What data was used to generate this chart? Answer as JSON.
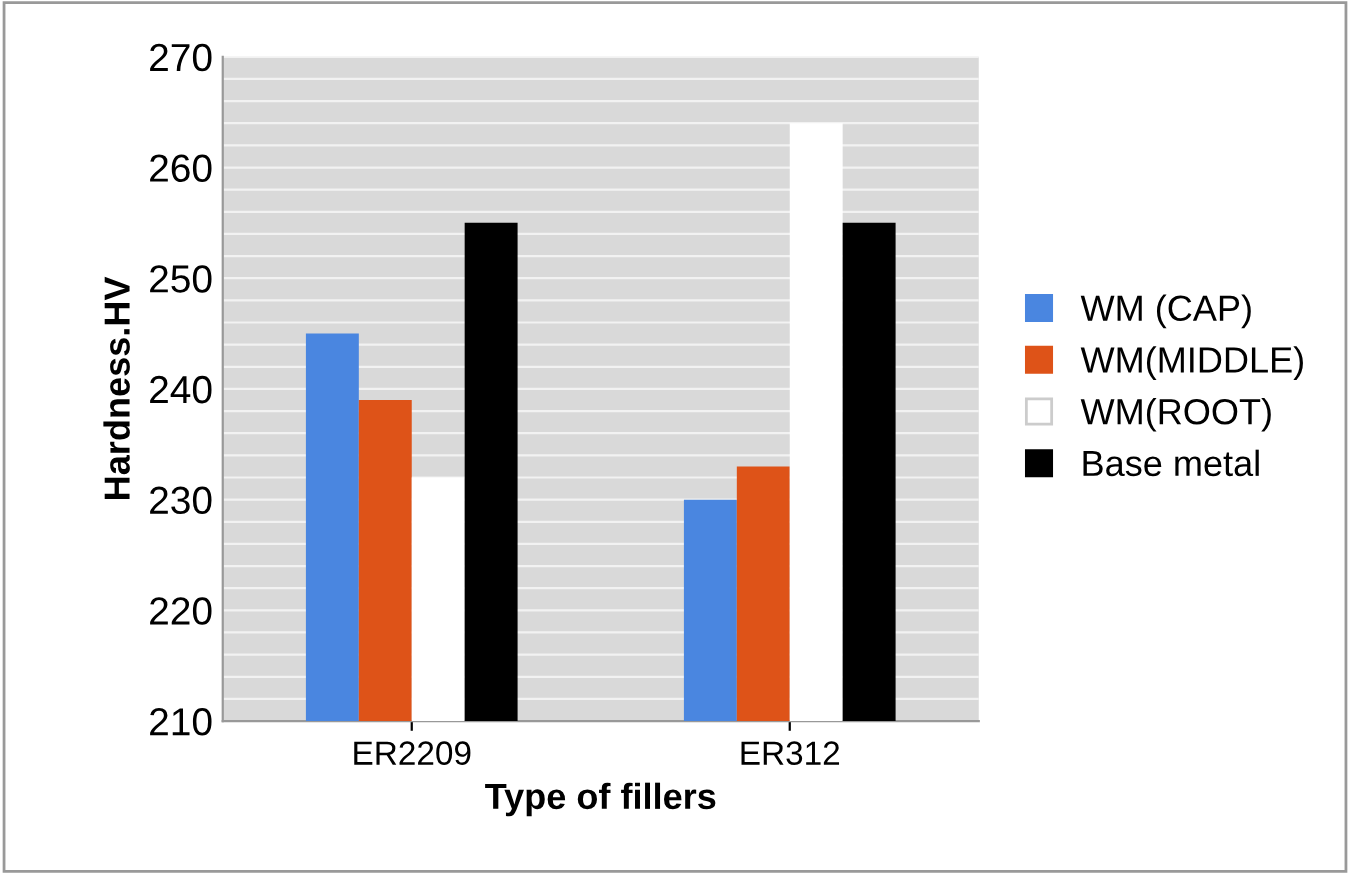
{
  "chart_data": {
    "type": "bar",
    "xlabel": "Type of fillers",
    "ylabel": "Hardness.HV",
    "categories": [
      "ER2209",
      "ER312"
    ],
    "series": [
      {
        "name": "WM (CAP)",
        "color": "#4a86e0",
        "values": [
          245,
          230
        ]
      },
      {
        "name": "WM(MIDDLE)",
        "color": "#de5318",
        "values": [
          239,
          233
        ]
      },
      {
        "name": "WM(ROOT)",
        "color": "#ffffff",
        "values": [
          232,
          264
        ]
      },
      {
        "name": "Base metal",
        "color": "#000000",
        "values": [
          255,
          255
        ]
      }
    ],
    "ylim": [
      210,
      270
    ],
    "yticks": [
      210,
      {
        "value": 212,
        "label": null
      },
      {
        "value": 214,
        "label": null
      },
      {
        "value": 216,
        "label": null
      },
      {
        "value": 218,
        "label": null
      },
      220,
      {
        "value": 222,
        "label": null
      },
      {
        "value": 224,
        "label": null
      },
      {
        "value": 226,
        "label": null
      },
      {
        "value": 228,
        "label": null
      },
      230,
      {
        "value": 232,
        "label": null
      },
      {
        "value": 234,
        "label": null
      },
      {
        "value": 236,
        "label": null
      },
      {
        "value": 238,
        "label": null
      },
      240,
      {
        "value": 242,
        "label": null
      },
      {
        "value": 244,
        "label": null
      },
      {
        "value": 246,
        "label": null
      },
      {
        "value": 248,
        "label": null
      },
      250,
      {
        "value": 252,
        "label": null
      },
      {
        "value": 254,
        "label": null
      },
      {
        "value": 256,
        "label": null
      },
      {
        "value": 258,
        "label": null
      },
      260,
      {
        "value": 262,
        "label": null
      },
      {
        "value": 264,
        "label": null
      },
      {
        "value": 266,
        "label": null
      },
      {
        "value": 268,
        "label": null
      },
      270
    ],
    "grid": "y",
    "legend": "right"
  }
}
